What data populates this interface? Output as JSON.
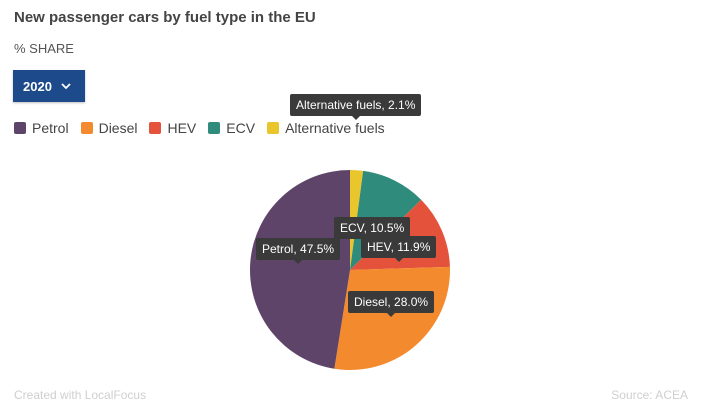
{
  "chart_data": {
    "type": "pie",
    "title": "New passenger cars by fuel type in the EU",
    "subtitle": "% SHARE",
    "categories": [
      "Alternative fuels",
      "ECV",
      "HEV",
      "Diesel",
      "Petrol"
    ],
    "values": [
      2.1,
      10.5,
      11.9,
      28.0,
      47.5
    ],
    "labels": [
      "Alternative fuels, 2.1%",
      "ECV, 10.5%",
      "HEV, 11.9%",
      "Diesel, 28.0%",
      "Petrol, 47.5%"
    ],
    "colors": [
      "#e9c62c",
      "#2f8c7c",
      "#e4523b",
      "#f48a2e",
      "#5d4468"
    ],
    "legend_position": "top-left"
  },
  "legend": [
    {
      "label": "Petrol",
      "color": "#5d4468"
    },
    {
      "label": "Diesel",
      "color": "#f48a2e"
    },
    {
      "label": "HEV",
      "color": "#e4523b"
    },
    {
      "label": "ECV",
      "color": "#2f8c7c"
    },
    {
      "label": "Alternative fuels",
      "color": "#e9c62c"
    }
  ],
  "year_select": {
    "value": "2020",
    "icon": "chevron-down-icon"
  },
  "footer": {
    "credit": "Created with LocalFocus",
    "source": "Source: ACEA"
  }
}
